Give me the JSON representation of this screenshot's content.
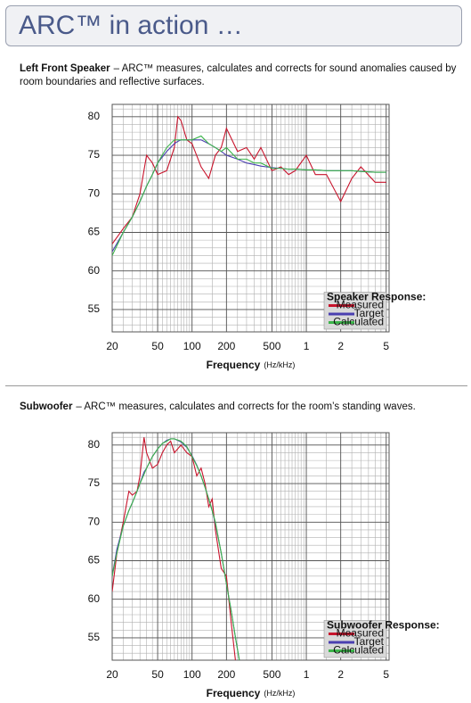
{
  "header": {
    "title": "ARC™ in action …"
  },
  "sections": [
    {
      "heading": "Left Front Speaker",
      "text": "– ARC™ measures, calculates and corrects for sound anomalies caused by room boundaries and reflective surfaces."
    },
    {
      "heading": "Subwoofer",
      "text": "– ARC™ measures, calculates and corrects for the room’s standing waves."
    }
  ],
  "chart_data": [
    {
      "type": "line",
      "log_x": true,
      "grid": true,
      "legend": "lower right",
      "x_label": "Frequency",
      "x_unit": "(Hz/kHz)",
      "legend_title": "Speaker Response:",
      "xlim": [
        20,
        5300
      ],
      "ylim": [
        52.1,
        81.6
      ],
      "xticks": [
        20,
        50,
        100,
        200,
        500,
        {
          "value": 1000,
          "label": "1"
        },
        {
          "value": 2000,
          "label": "2"
        },
        {
          "value": 5000,
          "label": "5"
        }
      ],
      "yticks": [
        55,
        60,
        65,
        70,
        75,
        80
      ],
      "x": [
        20,
        25,
        30,
        35,
        40,
        45,
        50,
        60,
        70,
        75,
        80,
        90,
        100,
        120,
        140,
        160,
        180,
        200,
        250,
        300,
        350,
        400,
        500,
        600,
        700,
        800,
        1000,
        1200,
        1500,
        2000,
        2500,
        3000,
        4000,
        5000
      ],
      "series": [
        {
          "name": "Measured",
          "color": "#c8142c",
          "values": [
            63.5,
            65.5,
            67,
            70,
            75,
            74,
            72.5,
            73,
            76,
            80,
            79.5,
            77,
            76.5,
            73.5,
            72,
            75,
            76,
            78.5,
            75.5,
            76,
            74.5,
            76,
            73,
            73.5,
            72.5,
            73,
            75,
            72.5,
            72.5,
            69,
            72,
            73.5,
            71.5,
            71.5
          ]
        },
        {
          "name": "Target",
          "color": "#4a3fb0",
          "values": [
            62.5,
            65,
            67,
            69,
            71,
            72.5,
            74,
            75.5,
            76.5,
            76.8,
            77,
            77,
            77,
            77,
            76.5,
            76,
            75.5,
            75,
            74.5,
            74,
            73.8,
            73.6,
            73.4,
            73.3,
            73.2,
            73.2,
            73.1,
            73.1,
            73,
            73,
            73,
            72.9,
            72.8,
            72.8
          ]
        },
        {
          "name": "Calculated",
          "color": "#3cb44a",
          "values": [
            62,
            65,
            67,
            69,
            71,
            72.5,
            74,
            76,
            77,
            77,
            77,
            77,
            77,
            77.5,
            76.5,
            76,
            75.5,
            76,
            74.5,
            74.5,
            74,
            74,
            73.3,
            73.3,
            73.2,
            73.2,
            73.1,
            73.1,
            73,
            73,
            73,
            72.9,
            72.8,
            72.8
          ]
        }
      ]
    },
    {
      "type": "line",
      "log_x": true,
      "grid": true,
      "legend": "lower right",
      "x_label": "Frequency",
      "x_unit": "(Hz/kHz)",
      "legend_title": "Subwoofer Response:",
      "xlim": [
        20,
        5300
      ],
      "ylim": [
        52.1,
        81.6
      ],
      "xticks": [
        20,
        50,
        100,
        200,
        500,
        {
          "value": 1000,
          "label": "1"
        },
        {
          "value": 2000,
          "label": "2"
        },
        {
          "value": 5000,
          "label": "5"
        }
      ],
      "yticks": [
        55,
        60,
        65,
        70,
        75,
        80
      ],
      "x": [
        20,
        22,
        25,
        28,
        30,
        33,
        35,
        38,
        40,
        45,
        50,
        55,
        60,
        65,
        70,
        80,
        90,
        100,
        110,
        120,
        130,
        140,
        150,
        160,
        180,
        200,
        220,
        240,
        260
      ],
      "series": [
        {
          "name": "Measured",
          "color": "#c8142c",
          "values": [
            61,
            66,
            70,
            74,
            73.5,
            74,
            76,
            81,
            79,
            77,
            77.5,
            79,
            80,
            80.5,
            79,
            80,
            79,
            78.5,
            76,
            77,
            75,
            72,
            73,
            69,
            64,
            63,
            57,
            52,
            null
          ]
        },
        {
          "name": "Target",
          "color": "#4a3fb0",
          "values": [
            63,
            66.5,
            69.5,
            71.5,
            72.5,
            74,
            75,
            76.5,
            77,
            78.5,
            79.5,
            80.2,
            80.6,
            80.8,
            80.8,
            80.4,
            79.7,
            78.6,
            77.4,
            76,
            74.5,
            73,
            71.5,
            69.8,
            66,
            62,
            58.5,
            55,
            52
          ]
        },
        {
          "name": "Calculated",
          "color": "#3cb44a",
          "values": [
            63,
            66,
            69.5,
            71.5,
            72.5,
            74,
            75,
            76.2,
            77,
            78.5,
            79.5,
            80.2,
            80.5,
            80.8,
            80.8,
            80.5,
            79.8,
            78.5,
            77.3,
            76,
            74.5,
            73,
            71.5,
            70,
            66,
            62,
            58.5,
            55,
            52
          ]
        }
      ]
    }
  ]
}
